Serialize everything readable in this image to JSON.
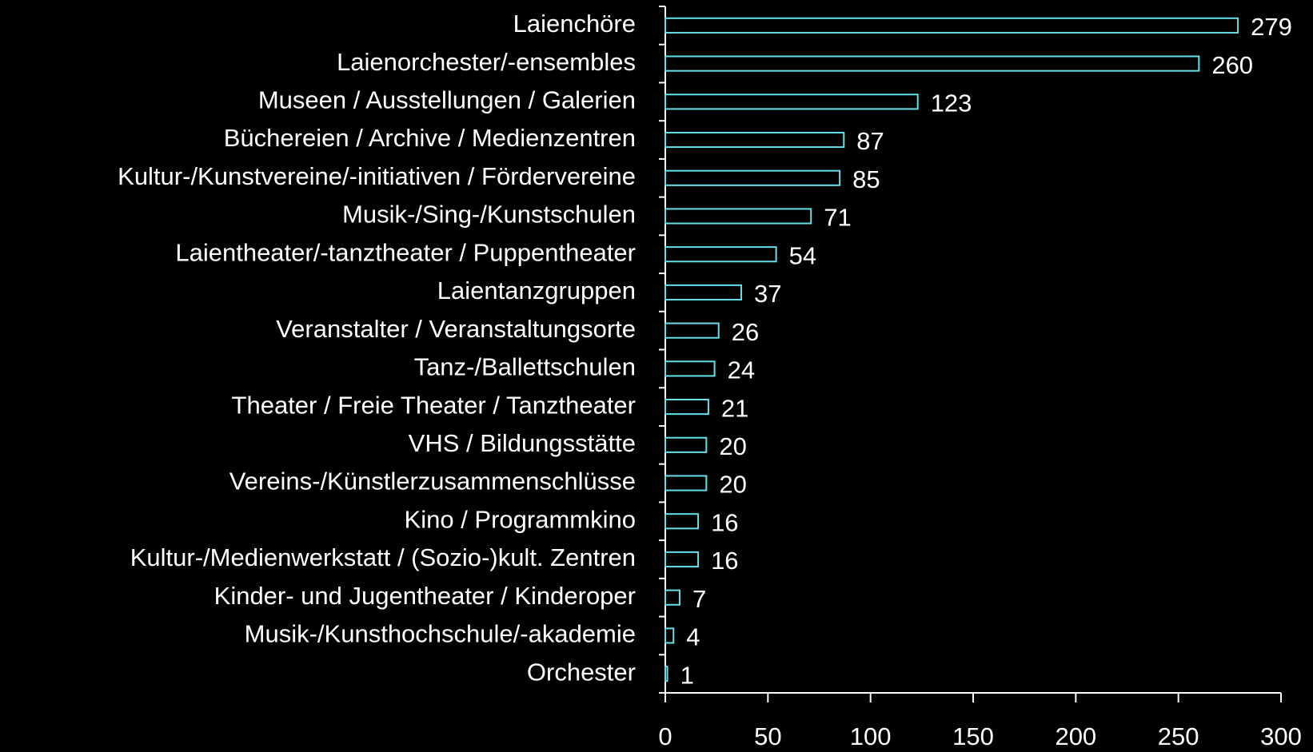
{
  "chart_data": {
    "type": "bar",
    "orientation": "horizontal",
    "categories": [
      "Laienchöre",
      "Laienorchester/-ensembles",
      "Museen / Ausstellungen / Galerien",
      "Büchereien / Archive / Medienzentren",
      "Kultur-/Kunstvereine/-initiativen / Fördervereine",
      "Musik-/Sing-/Kunstschulen",
      "Laientheater/-tanztheater / Puppentheater",
      "Laientanzgruppen",
      "Veranstalter / Veranstaltungsorte",
      "Tanz-/Ballettschulen",
      "Theater / Freie Theater / Tanztheater",
      "VHS / Bildungsstätte",
      "Vereins-/Künstlerzusammenschlüsse",
      "Kino / Programmkino",
      "Kultur-/Medienwerkstatt / (Sozio-)kult. Zentren",
      "Kinder- und Jugentheater / Kinderoper",
      "Musik-/Kunsthochschule/-akademie",
      "Orchester"
    ],
    "values": [
      279,
      260,
      123,
      87,
      85,
      71,
      54,
      37,
      26,
      24,
      21,
      20,
      20,
      16,
      16,
      7,
      4,
      1
    ],
    "color": "#66e0e8",
    "xlim": [
      0,
      300
    ],
    "xticks": [
      0,
      50,
      100,
      150,
      200,
      250,
      300
    ]
  }
}
